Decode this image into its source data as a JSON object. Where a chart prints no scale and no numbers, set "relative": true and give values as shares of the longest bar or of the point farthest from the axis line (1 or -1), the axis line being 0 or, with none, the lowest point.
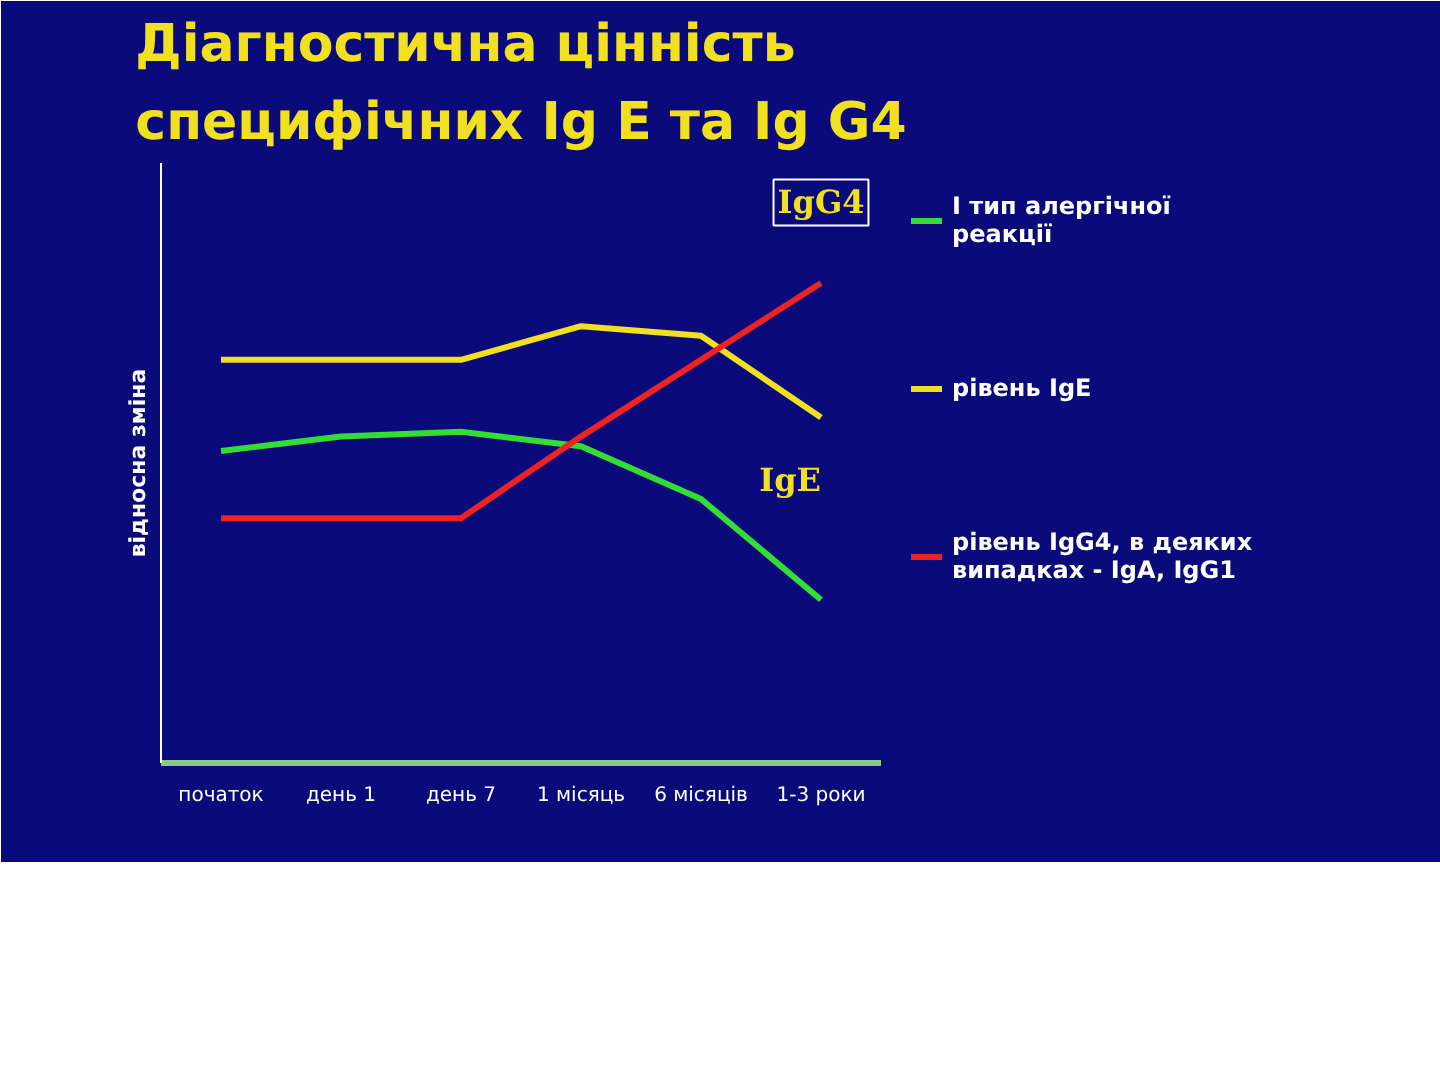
{
  "chart_data": {
    "type": "line",
    "title": "Діагностична цінність\nспецифічних Ig E та Ig G4",
    "ylabel": "відносна зміна",
    "relative": true,
    "categories": [
      "початок",
      "день 1",
      "день 7",
      "1 місяць",
      "6 місяців",
      "1-3 роки"
    ],
    "series": [
      {
        "name": "I тип алергічної реакції",
        "color": "#33dd33",
        "values": [
          0.65,
          0.68,
          0.69,
          0.66,
          0.55,
          0.34
        ]
      },
      {
        "name": "рівень IgE",
        "color": "#f0e020",
        "values": [
          0.84,
          0.84,
          0.84,
          0.91,
          0.89,
          0.72
        ]
      },
      {
        "name": "рівень IgG4, в деяких випадках - IgA, IgG1",
        "color": "#ee2222",
        "values": [
          0.51,
          0.51,
          0.51,
          0.68,
          0.84,
          1.0
        ]
      }
    ],
    "annotations": [
      "IgG4",
      "IgE"
    ],
    "legend": "right",
    "marker": "none",
    "line_style": "solid"
  }
}
